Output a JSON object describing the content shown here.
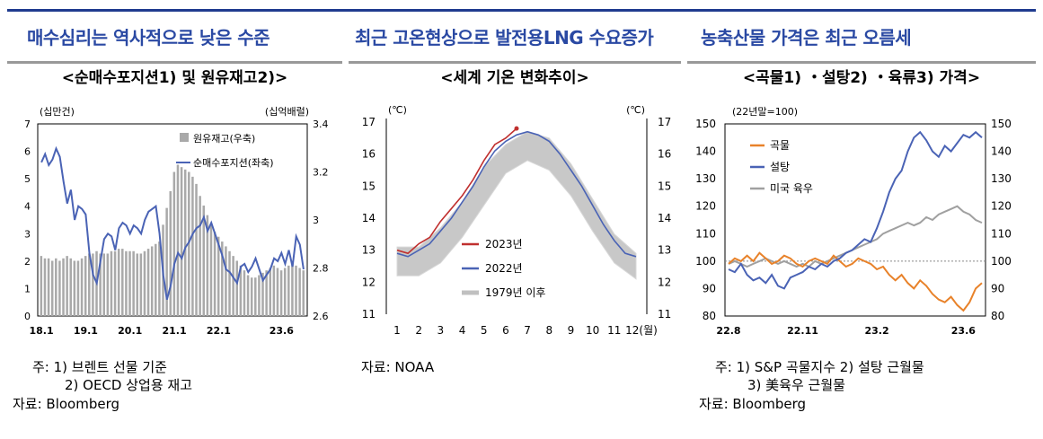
{
  "headlines": [
    "매수심리는 역사적으로 낮은 수준",
    "최근 고온현상으로 발전용LNG 수요증가",
    "농축산물 가격은 최근 오름세"
  ],
  "colors": {
    "headline": "#2a49a3",
    "blue": "#4a63b5",
    "gray": "#a9a9a9",
    "red": "#c0302f",
    "orange": "#e8822a",
    "lightgray": "#c8c8c8",
    "silver": "#a0a0a0"
  },
  "chart_data": [
    {
      "type": "bar",
      "title": "<순매수포지션1) 및 원유재고2)>",
      "left_unit": "(십만건)",
      "right_unit": "(십억배럴)",
      "x_ticks": [
        "18.1",
        "19.1",
        "20.1",
        "21.1",
        "22.1",
        "23.6"
      ],
      "left_ticks": [
        "0",
        "1",
        "2",
        "3",
        "4",
        "5",
        "6",
        "7"
      ],
      "right_ticks": [
        "2.6",
        "2.8",
        "3",
        "3.2",
        "3.4"
      ],
      "ylim_left": [
        0,
        7
      ],
      "ylim_right": [
        2.6,
        3.4
      ],
      "legend": [
        "원유재고(우축)",
        "순매수포지션(좌축)"
      ],
      "series": [
        {
          "name": "원유재고(우축)",
          "kind": "bar",
          "axis": "right",
          "values": [
            2.85,
            2.84,
            2.84,
            2.83,
            2.84,
            2.83,
            2.84,
            2.85,
            2.84,
            2.83,
            2.83,
            2.84,
            2.85,
            2.86,
            2.86,
            2.87,
            2.86,
            2.86,
            2.86,
            2.87,
            2.87,
            2.88,
            2.88,
            2.87,
            2.87,
            2.87,
            2.86,
            2.86,
            2.87,
            2.88,
            2.89,
            2.9,
            2.91,
            2.98,
            3.05,
            3.12,
            3.2,
            3.23,
            3.22,
            3.21,
            3.2,
            3.18,
            3.15,
            3.1,
            3.06,
            3.02,
            2.98,
            2.95,
            2.93,
            2.91,
            2.89,
            2.87,
            2.85,
            2.83,
            2.81,
            2.79,
            2.77,
            2.76,
            2.76,
            2.77,
            2.78,
            2.79,
            2.8,
            2.81,
            2.8,
            2.79,
            2.8,
            2.81,
            2.82,
            2.81,
            2.8,
            2.79
          ]
        },
        {
          "name": "순매수포지션(좌축)",
          "kind": "line",
          "axis": "left",
          "values": [
            5.6,
            5.9,
            5.5,
            5.7,
            6.1,
            5.8,
            4.9,
            4.1,
            4.6,
            3.5,
            4.0,
            3.9,
            3.7,
            2.3,
            1.5,
            1.2,
            2.0,
            2.8,
            3.0,
            2.9,
            2.4,
            3.2,
            3.4,
            3.3,
            3.0,
            3.3,
            3.2,
            3.0,
            3.5,
            3.8,
            3.9,
            4.0,
            3.0,
            1.5,
            0.6,
            1.1,
            1.9,
            2.3,
            2.1,
            2.5,
            2.7,
            3.0,
            3.2,
            3.3,
            3.6,
            3.1,
            3.4,
            3.0,
            2.6,
            2.2,
            1.7,
            1.6,
            1.4,
            1.2,
            1.8,
            1.9,
            1.6,
            1.8,
            2.1,
            1.7,
            1.3,
            1.5,
            1.7,
            2.1,
            2.0,
            2.3,
            1.9,
            2.4,
            1.8,
            2.9,
            2.6,
            1.7
          ]
        }
      ]
    },
    {
      "type": "line",
      "title": "<세계 기온 변화추이>",
      "left_unit": "(℃)",
      "right_unit": "(℃)",
      "x_ticks": [
        "1",
        "2",
        "3",
        "4",
        "5",
        "6",
        "7",
        "8",
        "9",
        "10",
        "11",
        "12(월)"
      ],
      "y_ticks": [
        "11",
        "12",
        "13",
        "14",
        "15",
        "16",
        "17"
      ],
      "ylim": [
        11,
        17
      ],
      "legend": [
        "2023년",
        "2022년",
        "1979년 이후"
      ],
      "series": [
        {
          "name": "2022년",
          "x": [
            1.0,
            1.5,
            2.0,
            2.5,
            3.0,
            3.5,
            4.0,
            4.5,
            5.0,
            5.5,
            6.0,
            6.5,
            7.0,
            7.5,
            8.0,
            8.5,
            9.0,
            9.5,
            10.0,
            10.5,
            11.0,
            11.5,
            12.0
          ],
          "values": [
            12.9,
            12.8,
            13.0,
            13.2,
            13.6,
            14.0,
            14.5,
            15.0,
            15.6,
            16.1,
            16.4,
            16.6,
            16.7,
            16.6,
            16.4,
            16.0,
            15.5,
            15.0,
            14.4,
            13.8,
            13.3,
            12.9,
            12.8
          ]
        },
        {
          "name": "2023년",
          "x": [
            1.0,
            1.5,
            2.0,
            2.5,
            3.0,
            3.5,
            4.0,
            4.5,
            5.0,
            5.5,
            6.0,
            6.5
          ],
          "values": [
            13.0,
            12.9,
            13.2,
            13.4,
            13.9,
            14.3,
            14.7,
            15.2,
            15.8,
            16.3,
            16.5,
            16.8
          ]
        },
        {
          "name": "1979년 이후",
          "kind": "band",
          "x": [
            1,
            2,
            3,
            4,
            5,
            6,
            7,
            8,
            9,
            10,
            11,
            12
          ],
          "low": [
            12.2,
            12.2,
            12.6,
            13.4,
            14.4,
            15.4,
            15.8,
            15.5,
            14.7,
            13.6,
            12.6,
            12.1
          ],
          "high": [
            13.1,
            13.1,
            13.7,
            14.5,
            15.6,
            16.3,
            16.7,
            16.5,
            15.7,
            14.6,
            13.5,
            12.9
          ]
        }
      ]
    },
    {
      "type": "line",
      "title": "<곡물1) ・설탕2) ・육류3) 가격>",
      "left_unit": "(22년말=100)",
      "x_ticks": [
        "22.8",
        "22.11",
        "23.2",
        "23.6"
      ],
      "y_ticks": [
        "80",
        "90",
        "100",
        "110",
        "120",
        "130",
        "140",
        "150"
      ],
      "ylim": [
        80,
        150
      ],
      "legend": [
        "곡물",
        "설탕",
        "미국 육우"
      ],
      "series": [
        {
          "name": "곡물",
          "values": [
            99,
            101,
            100,
            102,
            100,
            103,
            101,
            99,
            100,
            102,
            101,
            99,
            98,
            100,
            101,
            100,
            99,
            102,
            100,
            98,
            99,
            101,
            100,
            99,
            97,
            98,
            95,
            93,
            95,
            92,
            90,
            93,
            91,
            88,
            86,
            85,
            87,
            84,
            82,
            85,
            90,
            92
          ]
        },
        {
          "name": "설탕",
          "values": [
            97,
            96,
            99,
            95,
            93,
            94,
            92,
            95,
            91,
            90,
            94,
            95,
            96,
            98,
            97,
            99,
            98,
            100,
            101,
            103,
            104,
            106,
            108,
            107,
            112,
            118,
            125,
            130,
            133,
            140,
            145,
            147,
            144,
            140,
            138,
            142,
            140,
            143,
            146,
            145,
            147,
            145
          ]
        },
        {
          "name": "미국 육우",
          "values": [
            99,
            100,
            99,
            98,
            99,
            100,
            101,
            100,
            99,
            100,
            99,
            98,
            99,
            98,
            100,
            99,
            100,
            101,
            102,
            103,
            104,
            105,
            106,
            107,
            108,
            110,
            111,
            112,
            113,
            114,
            113,
            114,
            116,
            115,
            117,
            118,
            119,
            120,
            118,
            117,
            115,
            114
          ]
        }
      ]
    }
  ],
  "notes": {
    "left": [
      "주: 1) 브렌트 선물 기준",
      "2) OECD 상업용 재고",
      "자료: Bloomberg"
    ],
    "mid": [
      "자료: NOAA"
    ],
    "right": [
      "주: 1) S&P 곡물지수 2) 설탕 근월물",
      "3) 美육우 근월물",
      "자료: Bloomberg"
    ]
  }
}
